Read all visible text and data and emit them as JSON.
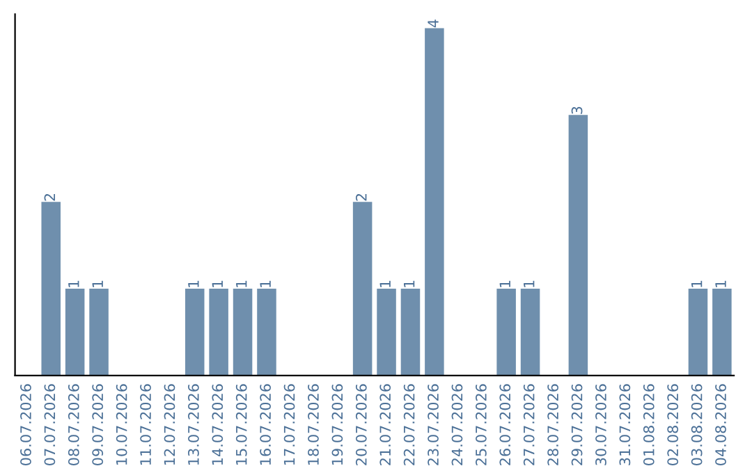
{
  "chart_data": {
    "type": "bar",
    "categories": [
      "06.07.2026",
      "07.07.2026",
      "08.07.2026",
      "09.07.2026",
      "10.07.2026",
      "11.07.2026",
      "12.07.2026",
      "13.07.2026",
      "14.07.2026",
      "15.07.2026",
      "16.07.2026",
      "17.07.2026",
      "18.07.2026",
      "19.07.2026",
      "20.07.2026",
      "21.07.2026",
      "22.07.2026",
      "23.07.2026",
      "24.07.2026",
      "25.07.2026",
      "26.07.2026",
      "27.07.2026",
      "28.07.2026",
      "29.07.2026",
      "30.07.2026",
      "31.07.2026",
      "01.08.2026",
      "02.08.2026",
      "03.08.2026",
      "04.08.2026"
    ],
    "values": [
      0,
      2,
      1,
      1,
      0,
      0,
      0,
      1,
      1,
      1,
      1,
      0,
      0,
      0,
      2,
      1,
      1,
      4,
      0,
      0,
      1,
      1,
      0,
      3,
      0,
      0,
      0,
      0,
      1,
      1
    ],
    "value_labels": [
      null,
      "2",
      "1",
      "1",
      null,
      null,
      null,
      "1",
      "1",
      "1",
      "1",
      null,
      null,
      null,
      "2",
      "1",
      "1",
      "4",
      null,
      null,
      "1",
      "1",
      null,
      "3",
      null,
      null,
      null,
      null,
      "1",
      "1"
    ],
    "color": "#6f8fad",
    "grid": false,
    "tick_labels": "x"
  }
}
